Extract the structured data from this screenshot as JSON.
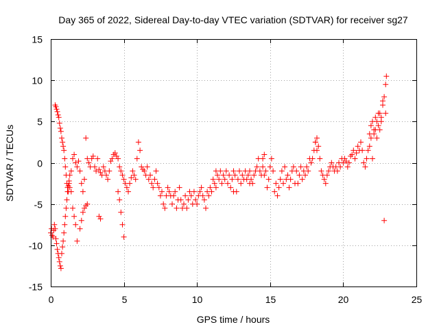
{
  "chart_data": {
    "type": "scatter",
    "title": "Day 365 of 2022, Sidereal Day-to-day VTEC variation (SDTVAR) for receiver sg27",
    "xlabel": "GPS time / hours",
    "ylabel": "SDTVAR / TECUs",
    "xlim": [
      0,
      25
    ],
    "ylim": [
      -15,
      15
    ],
    "xticks": [
      0,
      5,
      10,
      15,
      20,
      25
    ],
    "yticks": [
      -15,
      -10,
      -5,
      0,
      5,
      10,
      15
    ],
    "xtick_labels": [
      "0",
      "5",
      "10",
      "15",
      "20",
      "25"
    ],
    "ytick_labels": [
      "-15",
      "-10",
      "-5",
      "0",
      "5",
      "10",
      "15"
    ],
    "grid": true,
    "marker": "plus",
    "color": "#ff0000",
    "series": [
      {
        "name": "sg27",
        "x": [
          0.0,
          0.05,
          0.1,
          0.15,
          0.2,
          0.25,
          0.3,
          0.35,
          0.4,
          0.45,
          0.5,
          0.55,
          0.6,
          0.65,
          0.7,
          0.75,
          0.8,
          0.85,
          0.9,
          0.95,
          1.0,
          1.05,
          1.1,
          1.15,
          1.2,
          1.25,
          1.3,
          1.4,
          1.5,
          1.6,
          1.7,
          1.8,
          1.9,
          2.0,
          2.1,
          2.2,
          2.3,
          2.4,
          2.5,
          2.6,
          2.7,
          2.8,
          2.9,
          3.0,
          3.1,
          3.2,
          3.3,
          3.4,
          3.5,
          3.6,
          3.7,
          3.8,
          3.9,
          4.0,
          4.1,
          4.2,
          4.3,
          4.4,
          4.5,
          4.6,
          4.7,
          4.8,
          4.9,
          5.0,
          5.1,
          5.2,
          5.3,
          5.4,
          5.5,
          5.6,
          5.7,
          5.8,
          5.9,
          6.0,
          6.1,
          6.2,
          6.3,
          6.4,
          6.5,
          6.6,
          6.7,
          6.8,
          6.9,
          7.0,
          7.1,
          7.2,
          7.3,
          7.4,
          7.5,
          7.6,
          7.7,
          7.8,
          7.9,
          8.0,
          8.1,
          8.2,
          8.3,
          8.4,
          8.5,
          8.6,
          8.7,
          8.8,
          8.9,
          9.0,
          9.1,
          9.2,
          9.3,
          9.4,
          9.5,
          9.6,
          9.7,
          9.8,
          9.9,
          10.0,
          10.1,
          10.2,
          10.3,
          10.4,
          10.5,
          10.6,
          10.7,
          10.8,
          10.9,
          11.0,
          11.1,
          11.2,
          11.3,
          11.4,
          11.5,
          11.6,
          11.7,
          11.8,
          11.9,
          12.0,
          12.1,
          12.2,
          12.3,
          12.4,
          12.5,
          12.6,
          12.7,
          12.8,
          12.9,
          13.0,
          13.1,
          13.2,
          13.3,
          13.4,
          13.5,
          13.6,
          13.7,
          13.8,
          13.9,
          14.0,
          14.1,
          14.2,
          14.3,
          14.4,
          14.5,
          14.6,
          14.7,
          14.8,
          14.9,
          15.0,
          15.1,
          15.2,
          15.3,
          15.4,
          15.5,
          15.6,
          15.7,
          15.8,
          15.9,
          16.0,
          16.1,
          16.2,
          16.3,
          16.4,
          16.5,
          16.6,
          16.7,
          16.8,
          16.9,
          17.0,
          17.1,
          17.2,
          17.3,
          17.4,
          17.5,
          17.6,
          17.7,
          17.8,
          17.9,
          18.0,
          18.1,
          18.2,
          18.3,
          18.4,
          18.5,
          18.6,
          18.7,
          18.8,
          18.9,
          19.0,
          19.1,
          19.2,
          19.3,
          19.4,
          19.5,
          19.6,
          19.7,
          19.8,
          19.9,
          20.0,
          20.1,
          20.2,
          20.3,
          20.4,
          20.5,
          20.6,
          20.7,
          20.8,
          20.9,
          21.0,
          21.1,
          21.2,
          21.3,
          21.4,
          21.5,
          21.6,
          21.7,
          21.8,
          21.9,
          22.0,
          22.1,
          22.2,
          22.3,
          22.4,
          22.5,
          22.6,
          22.7,
          22.8,
          22.9,
          0.3,
          0.35,
          0.4,
          0.45,
          0.5,
          0.55,
          0.6,
          0.65,
          0.7,
          0.75,
          0.8,
          0.85,
          0.9,
          0.95,
          1.0,
          1.05,
          1.1,
          1.15,
          1.2,
          1.25,
          1.3,
          1.4,
          1.5,
          1.6,
          1.7,
          1.8,
          2.0,
          2.1,
          2.2,
          2.3,
          2.4,
          2.5,
          3.3,
          3.4,
          4.6,
          4.7,
          4.8,
          4.9,
          5.0,
          21.8,
          21.9,
          22.0,
          22.1,
          22.2,
          22.3,
          22.4,
          22.5,
          22.6,
          22.7,
          22.8,
          22.9,
          22.95,
          18.1,
          18.2,
          13.6,
          14.5,
          14.6,
          12.5,
          11.3
        ],
        "y": [
          -8.5,
          -8.0,
          -8.8,
          -9.0,
          -8.2,
          -7.5,
          -8.0,
          -9.2,
          -9.8,
          -10.5,
          -11.0,
          -11.5,
          -12.0,
          -12.5,
          -12.8,
          -11.0,
          -10.2,
          -9.5,
          -8.5,
          -7.5,
          -6.5,
          -5.5,
          -4.5,
          -3.5,
          -2.8,
          -2.2,
          -1.5,
          -1.0,
          0.5,
          1.0,
          0.0,
          -0.5,
          0.2,
          -1.0,
          -2.5,
          -3.5,
          -2.0,
          3.0,
          0.5,
          0.0,
          -0.5,
          0.5,
          0.8,
          -0.5,
          -1.0,
          0.5,
          -0.8,
          -1.2,
          -1.5,
          -0.5,
          -1.0,
          -1.5,
          -2.0,
          -1.0,
          0.2,
          0.5,
          1.0,
          1.2,
          0.8,
          0.5,
          -0.5,
          -1.0,
          -1.5,
          -2.0,
          -2.5,
          -3.0,
          -3.5,
          -2.5,
          -1.8,
          -1.0,
          -1.5,
          -2.0,
          0.5,
          2.5,
          1.5,
          -0.5,
          -0.8,
          -1.0,
          -1.5,
          -0.5,
          -2.0,
          -1.5,
          -2.5,
          -3.0,
          -2.0,
          -1.0,
          -2.5,
          -3.0,
          -4.0,
          -3.5,
          -5.0,
          -5.5,
          -4.0,
          -3.0,
          -3.5,
          -4.0,
          -5.0,
          -4.0,
          -3.5,
          -5.5,
          -4.5,
          -3.0,
          -4.5,
          -5.5,
          -5.0,
          -4.0,
          -5.5,
          -4.5,
          -3.5,
          -4.0,
          -5.0,
          -3.5,
          -4.5,
          -5.0,
          -4.0,
          -3.5,
          -3.0,
          -4.0,
          -4.5,
          -5.5,
          -3.5,
          -4.0,
          -3.0,
          -3.5,
          -2.0,
          -2.5,
          -3.0,
          -1.5,
          -2.0,
          -1.0,
          -2.5,
          -1.5,
          -2.0,
          -1.0,
          -2.5,
          -1.5,
          -3.0,
          -2.0,
          -1.0,
          -1.5,
          -3.5,
          -2.0,
          -1.0,
          -2.5,
          -1.5,
          -2.0,
          -1.0,
          -2.0,
          -1.5,
          -1.0,
          -2.0,
          -2.5,
          -1.5,
          -1.0,
          -0.5,
          0.5,
          -1.0,
          -1.5,
          -0.5,
          -1.5,
          -1.0,
          -3.0,
          -2.0,
          -0.5,
          0.5,
          -1.0,
          -3.5,
          -2.5,
          -4.0,
          -3.0,
          -2.0,
          -1.0,
          -2.5,
          -0.5,
          -2.0,
          -1.5,
          -3.0,
          -2.0,
          -1.0,
          -0.5,
          -2.5,
          -1.0,
          -2.5,
          -1.5,
          -0.5,
          -2.0,
          -1.0,
          -1.5,
          -0.5,
          -1.0,
          0.5,
          0.0,
          0.5,
          1.5,
          2.5,
          3.0,
          2.0,
          0.5,
          -1.0,
          -1.5,
          -2.0,
          -2.5,
          -1.5,
          -1.0,
          -0.5,
          0.0,
          -0.5,
          -1.0,
          -0.5,
          -1.0,
          0.0,
          -0.5,
          0.5,
          0.0,
          0.5,
          0.2,
          -0.5,
          0.0,
          0.8,
          1.0,
          1.5,
          0.5,
          1.2,
          2.0,
          1.5,
          2.5,
          1.5,
          0.0,
          -0.5,
          0.5,
          1.5,
          2.0,
          3.0,
          0.5,
          3.5,
          4.0,
          5.0,
          6.0,
          4.0,
          5.5,
          7.5,
          -7.0,
          6.0,
          7.0,
          6.8,
          6.5,
          6.2,
          5.8,
          5.5,
          4.8,
          4.2,
          3.8,
          3.0,
          2.5,
          2.0,
          1.5,
          0.5,
          -0.5,
          -1.5,
          -2.5,
          -3.0,
          -3.5,
          -2.5,
          -3.0,
          -3.5,
          -5.5,
          -6.5,
          -7.5,
          -9.5,
          -8.0,
          -7.0,
          -6.0,
          -5.5,
          -5.2,
          -5.0,
          -6.5,
          -6.8,
          -3.5,
          -4.5,
          -6.0,
          -7.5,
          -9.0,
          3.5,
          4.5,
          5.0,
          4.0,
          5.5,
          3.0,
          4.5,
          6.0,
          5.0,
          7.0,
          8.0,
          9.5,
          10.5,
          2.5,
          1.5,
          -2.5,
          0.5,
          1.0,
          -3.5,
          -1.0
        ]
      }
    ]
  }
}
